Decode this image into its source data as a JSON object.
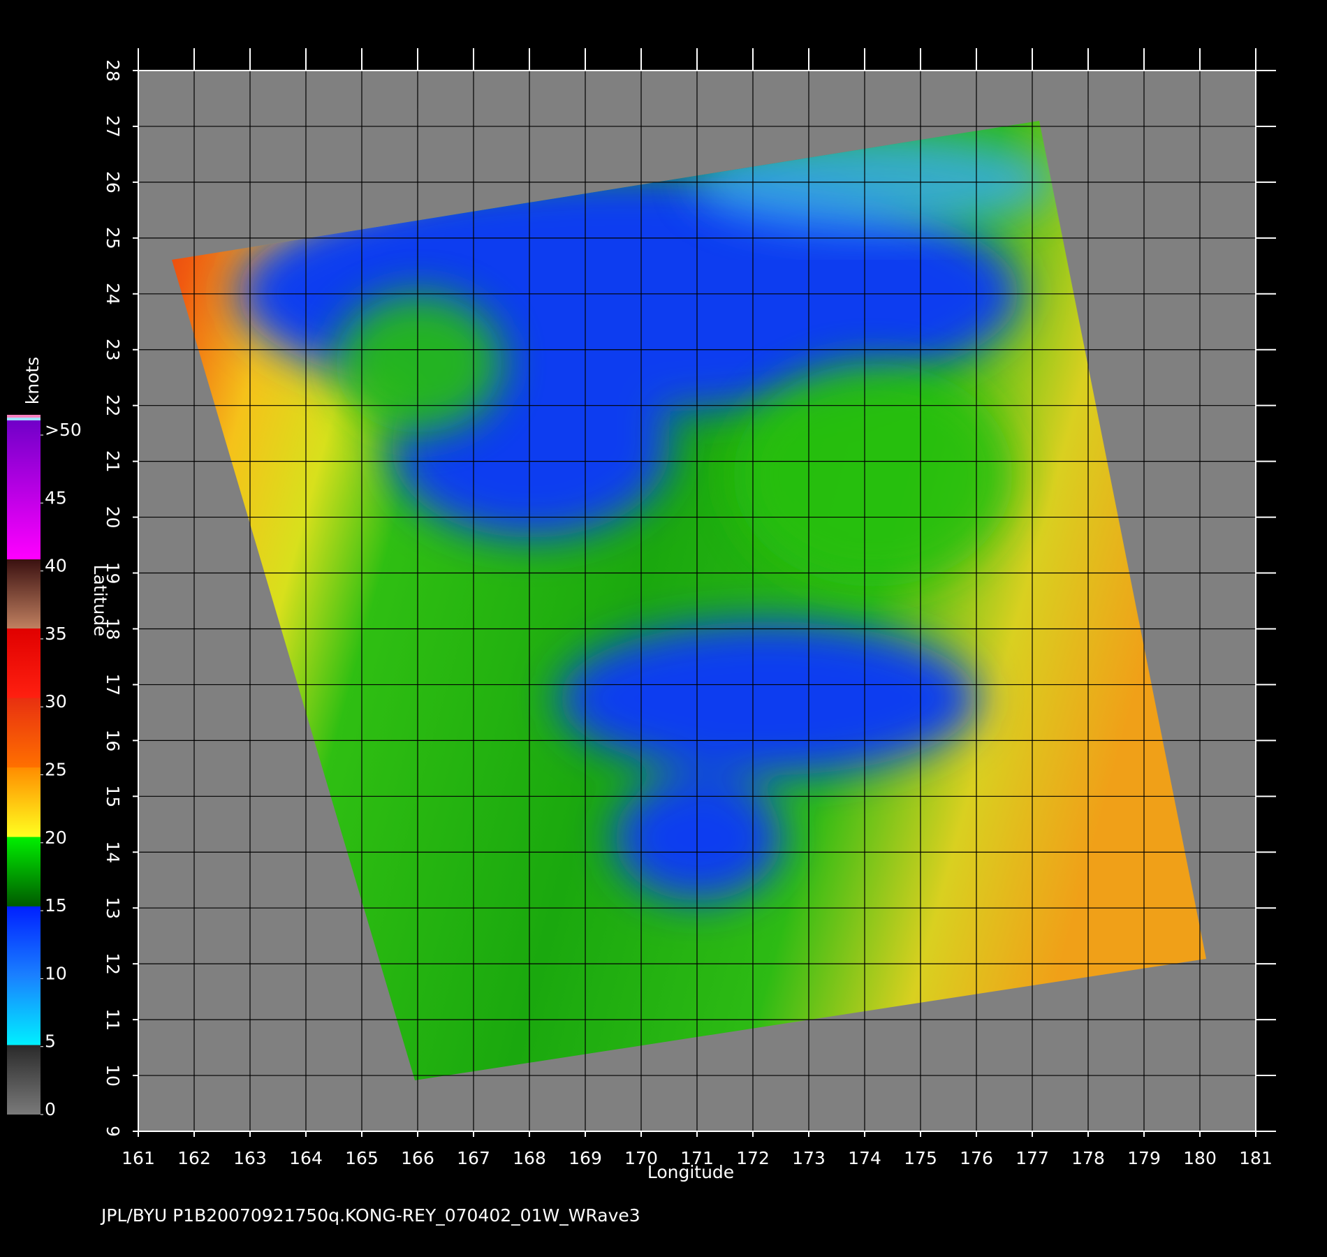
{
  "map": {
    "x_label": "Longitude",
    "y_label": "Latitude",
    "xlim": [
      161,
      181
    ],
    "ylim": [
      9,
      28
    ],
    "xticks": [
      161,
      162,
      163,
      164,
      165,
      166,
      167,
      168,
      169,
      170,
      171,
      172,
      173,
      174,
      175,
      176,
      177,
      178,
      179,
      180,
      181
    ],
    "yticks": [
      9,
      10,
      11,
      12,
      13,
      14,
      15,
      16,
      17,
      18,
      19,
      20,
      21,
      22,
      23,
      24,
      25,
      26,
      27,
      28
    ]
  },
  "colorbar": {
    "title": "knots",
    "lim": [
      0,
      50
    ],
    "ticks": [
      0,
      5,
      10,
      15,
      20,
      25,
      30,
      35,
      40,
      45,
      {
        "value": 50,
        "label": ">50"
      }
    ]
  },
  "footer": "JPL/BYU  P1B20070921750q.KONG-REY_070402_01W_WRave3"
}
